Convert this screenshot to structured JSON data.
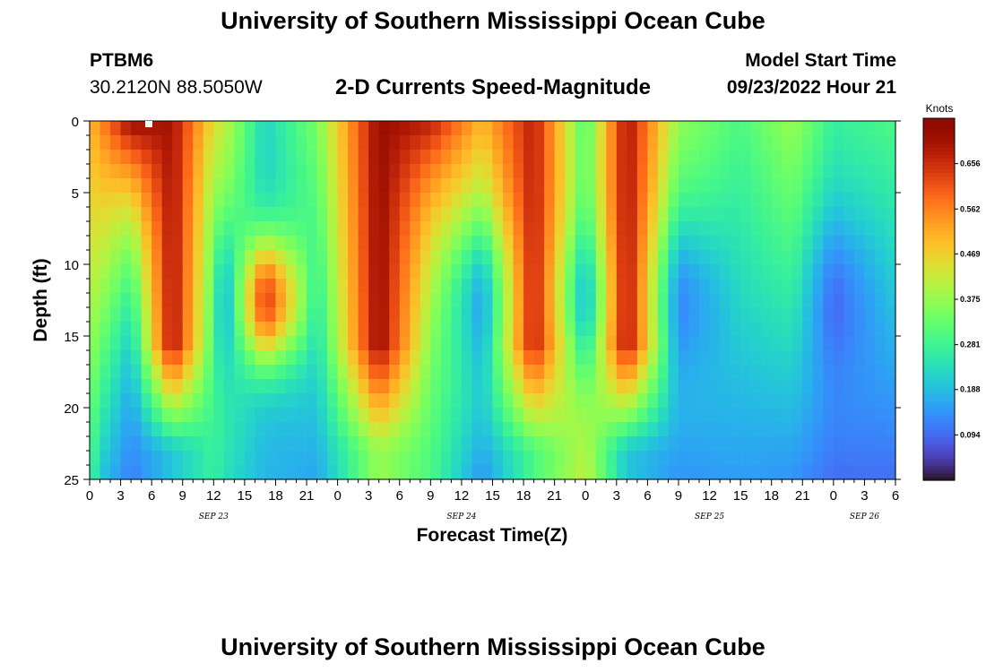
{
  "page": {
    "title": "University of Southern Mississippi Ocean Cube",
    "title_repeat": "University of Southern Mississippi Ocean Cube",
    "station": "PTBM6",
    "coords": "30.2120N  88.5050W",
    "subtitle": "2-D Currents Speed-Magnitude",
    "model_start_label": "Model Start Time",
    "model_start_value": "09/23/2022 Hour 21"
  },
  "chart_data": {
    "type": "heatmap",
    "title": "2-D Currents Speed-Magnitude",
    "xlabel": "Forecast Time(Z)",
    "ylabel": "Depth (ft)",
    "x_range_hours": [
      0,
      78
    ],
    "x_ticks": [
      "0",
      "3",
      "6",
      "9",
      "12",
      "15",
      "18",
      "21",
      "0",
      "3",
      "6",
      "9",
      "12",
      "15",
      "18",
      "21",
      "0",
      "3",
      "6",
      "9",
      "12",
      "15",
      "18",
      "21",
      "0",
      "3",
      "6"
    ],
    "date_labels": [
      {
        "label": "SEP 23",
        "hour": 12
      },
      {
        "label": "SEP 24",
        "hour": 36
      },
      {
        "label": "SEP 25",
        "hour": 60
      },
      {
        "label": "SEP 26",
        "hour": 75
      }
    ],
    "ylim": [
      0,
      25
    ],
    "y_ticks": [
      0,
      5,
      10,
      15,
      20,
      25
    ],
    "y_inverted": true,
    "colorbar": {
      "label": "Knots",
      "ticks": [
        0.656,
        0.562,
        0.469,
        0.375,
        0.281,
        0.188,
        0.094
      ],
      "vmin": 0.0,
      "vmax": 0.75,
      "colormap": "turbo"
    },
    "field": {
      "description": "Current speed (knots) as function of forecast hour and depth",
      "columns": [
        {
          "t": 0,
          "surface": 0.5,
          "bottom": 0.3,
          "shape": "uniform"
        },
        {
          "t": 1,
          "surface": 0.55,
          "bottom": 0.2,
          "shape": "uniform"
        },
        {
          "t": 4,
          "surface": 0.72,
          "bottom": 0.04,
          "shape": "surface-decay"
        },
        {
          "t": 8,
          "surface": 0.7,
          "bottom": 0.2,
          "shape": "deep-jet"
        },
        {
          "t": 12,
          "surface": 0.45,
          "bottom": 0.25,
          "shape": "surface-decay"
        },
        {
          "t": 13,
          "surface": 0.4,
          "bottom": 0.22,
          "shape": "core-low"
        },
        {
          "t": 17,
          "surface": 0.22,
          "bottom": 0.18,
          "shape": "mid-max"
        },
        {
          "t": 22,
          "surface": 0.35,
          "bottom": 0.16,
          "shape": "uniform"
        },
        {
          "t": 28,
          "surface": 0.72,
          "bottom": 0.38,
          "shape": "deep-jet"
        },
        {
          "t": 33,
          "surface": 0.68,
          "bottom": 0.25,
          "shape": "surface-decay"
        },
        {
          "t": 38,
          "surface": 0.48,
          "bottom": 0.12,
          "shape": "core-low"
        },
        {
          "t": 43,
          "surface": 0.68,
          "bottom": 0.3,
          "shape": "deep-jet"
        },
        {
          "t": 48,
          "surface": 0.28,
          "bottom": 0.4,
          "shape": "core-low"
        },
        {
          "t": 52,
          "surface": 0.7,
          "bottom": 0.2,
          "shape": "deep-jet"
        },
        {
          "t": 57,
          "surface": 0.35,
          "bottom": 0.12,
          "shape": "core-low"
        },
        {
          "t": 63,
          "surface": 0.3,
          "bottom": 0.15,
          "shape": "uniform"
        },
        {
          "t": 68,
          "surface": 0.38,
          "bottom": 0.14,
          "shape": "uniform"
        },
        {
          "t": 72,
          "surface": 0.25,
          "bottom": 0.08,
          "shape": "core-low"
        },
        {
          "t": 78,
          "surface": 0.3,
          "bottom": 0.1,
          "shape": "uniform"
        }
      ]
    }
  }
}
